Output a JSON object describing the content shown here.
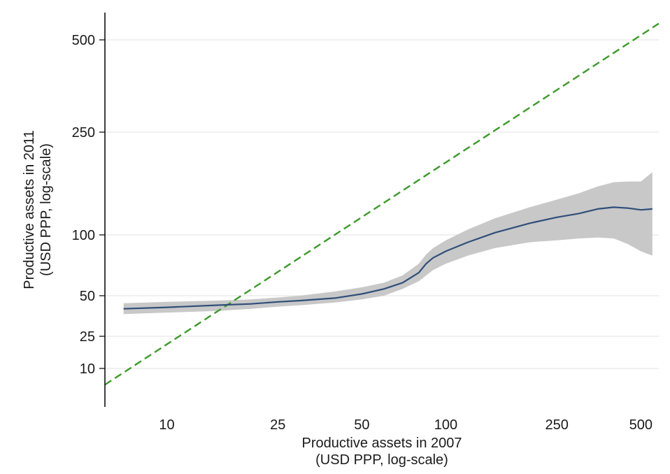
{
  "chart_data": {
    "type": "line",
    "x_scale": "log-scale",
    "y_scale": "log-scale",
    "xlabel": [
      "Productive assets in 2007",
      "(USD PPP, log-scale)"
    ],
    "ylabel": [
      "Productive assets in 2011",
      "(USD PPP, log-scale)"
    ],
    "xlim": [
      6,
      580
    ],
    "ylim": [
      3,
      640
    ],
    "x_ticks": [
      10,
      25,
      50,
      100,
      250,
      500
    ],
    "y_ticks": [
      10,
      25,
      50,
      100,
      250,
      500
    ],
    "grid": "horizontal gridlines at y ticks",
    "series": [
      {
        "kind": "fitted-line",
        "color": "#2f4f7a",
        "x": [
          7,
          10,
          15,
          20,
          25,
          30,
          40,
          50,
          60,
          70,
          80,
          85,
          90,
          100,
          120,
          150,
          200,
          250,
          300,
          350,
          400,
          450,
          500,
          550
        ],
        "y": [
          40,
          41,
          42.5,
          43.5,
          45,
          46,
          48,
          51,
          54,
          58,
          65,
          72,
          77,
          83,
          92,
          102,
          111,
          117,
          121,
          126,
          128,
          127,
          125,
          126
        ]
      },
      {
        "kind": "confidence-interval",
        "color": "#c8c8c8",
        "x": [
          7,
          10,
          15,
          20,
          25,
          30,
          40,
          50,
          60,
          70,
          80,
          85,
          90,
          100,
          120,
          150,
          200,
          250,
          300,
          350,
          400,
          450,
          500,
          550
        ],
        "upper": [
          44,
          45,
          46,
          47,
          48.5,
          50,
          52.5,
          55,
          58,
          63,
          72,
          80,
          86,
          94,
          105,
          116,
          128,
          137,
          145,
          154,
          160,
          161,
          161,
          175
        ],
        "lower": [
          36.5,
          37.5,
          38.5,
          40,
          41.5,
          42.5,
          44.5,
          47,
          50,
          54,
          59,
          63,
          67,
          72,
          79,
          86,
          92,
          94,
          96,
          97,
          96,
          90,
          83,
          79
        ]
      },
      {
        "kind": "45-degree-line",
        "color": "#3c9a2a",
        "dashed": true,
        "x": [
          6,
          580
        ],
        "y": [
          6,
          580
        ]
      }
    ]
  }
}
